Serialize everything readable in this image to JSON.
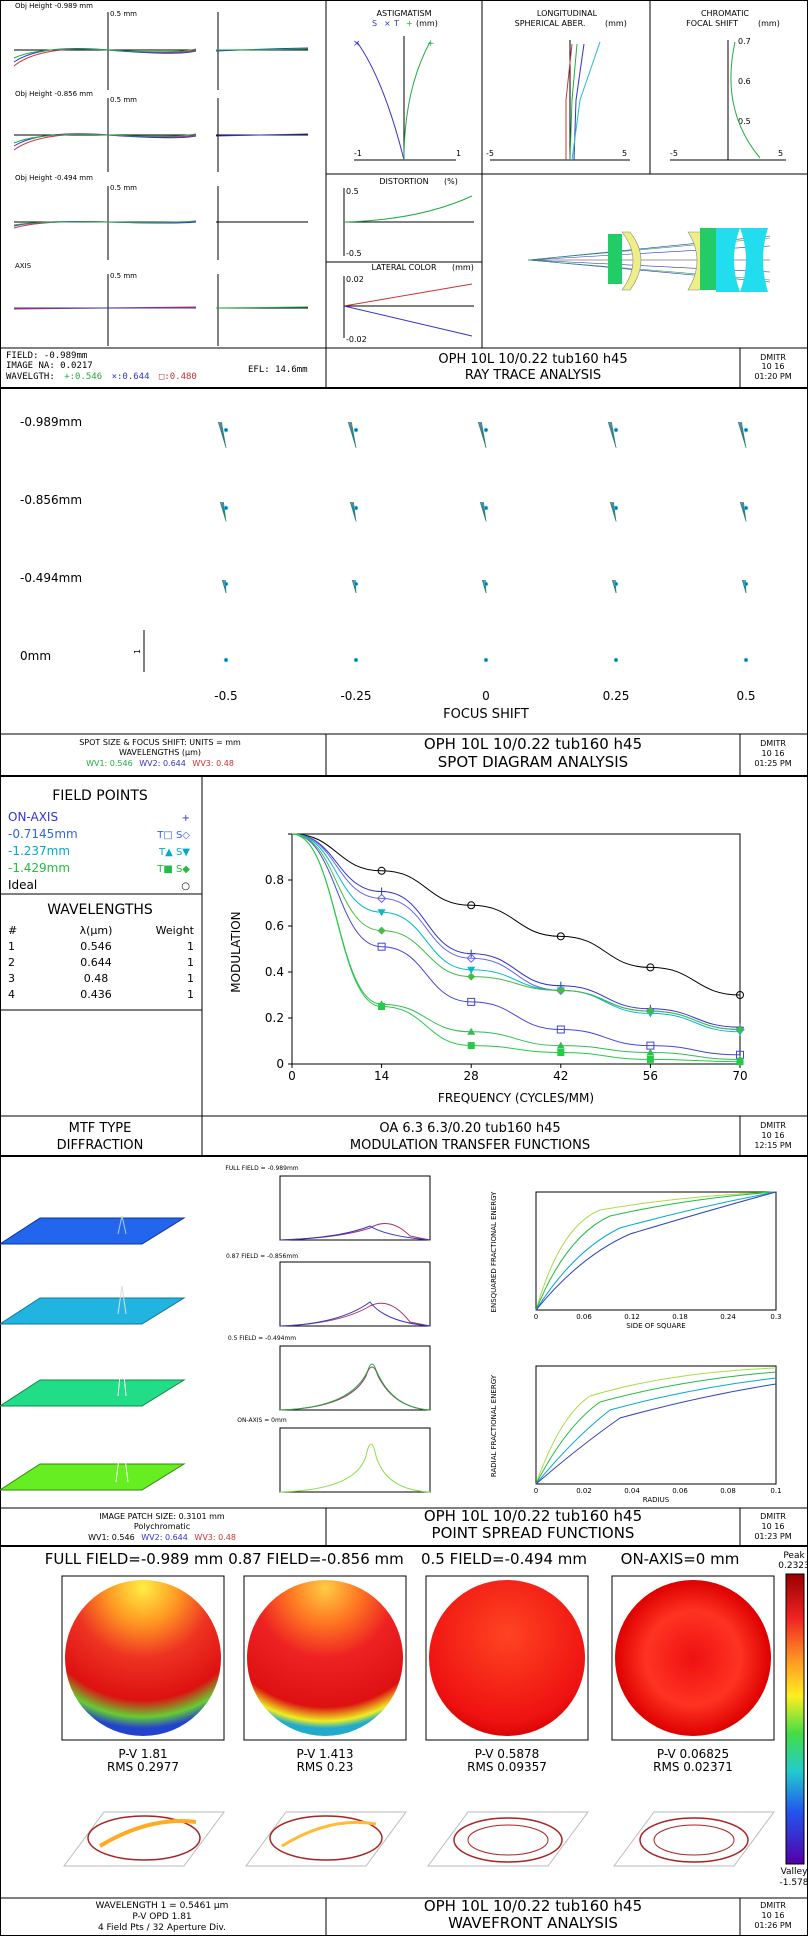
{
  "ray_trace": {
    "fans": [
      {
        "label": "Obj Height -0.989 mm",
        "scale": "0.5 mm"
      },
      {
        "label": "Obj Height -0.856 mm",
        "scale": "0.5 mm"
      },
      {
        "label": "Obj Height -0.494 mm",
        "scale": "0.5 mm"
      },
      {
        "label": "AXIS",
        "scale": "0.5 mm"
      }
    ],
    "astig": {
      "title": "ASTIGMATISM",
      "legend_s": "S",
      "legend_t": "T",
      "unit": "(mm)",
      "tick_min": "-1",
      "tick_max": "1"
    },
    "lsa": {
      "title1": "LONGITUDINAL",
      "title2": "SPHERICAL ABER.",
      "unit": "(mm)",
      "tick_min": "-5",
      "tick_max": "5"
    },
    "chroma": {
      "title1": "CHROMATIC",
      "title2": "FOCAL SHIFT",
      "unit": "(mm)",
      "tick_min": "-5",
      "tick_max": "5",
      "y_ticks": [
        "0.7",
        "0.6",
        "0.5"
      ]
    },
    "distortion": {
      "title": "DISTORTION",
      "unit": "(%)",
      "top": "0.5",
      "bottom": "-0.5"
    },
    "lateral": {
      "title": "LATERAL COLOR",
      "unit": "(mm)",
      "top": "0.02",
      "bottom": "-0.02"
    },
    "info": {
      "field": "FIELD: -0.989mm",
      "na": "IMAGE NA: 0.0217",
      "wave_prefix": "WAVELGTH:",
      "wave1": "+:0.546",
      "wave2": "×:0.644",
      "wave3": "□:0.480",
      "efl": "EFL: 14.6mm"
    },
    "title1": "OPH 10L 10/0.22 tub160 h45",
    "title2": "RAY TRACE ANALYSIS",
    "stamp": {
      "name": "DMITR",
      "date": "10  16",
      "time": "01:20 PM"
    }
  },
  "spot": {
    "rows": [
      "-0.989mm",
      "-0.856mm",
      "-0.494mm",
      "0mm"
    ],
    "scale": "1",
    "shifts": [
      "-0.5",
      "-0.25",
      "0",
      "0.25",
      "0.5"
    ],
    "xlabel": "FOCUS SHIFT",
    "info1": "SPOT SIZE & FOCUS SHIFT: UNITS = mm",
    "info2": "WAVELENGTHS (µm)",
    "wv1": "WV1: 0.546",
    "wv2": "WV2: 0.644",
    "wv3": "WV3: 0.48",
    "title1": "OPH 10L 10/0.22 tub160 h45",
    "title2": "SPOT DIAGRAM ANALYSIS",
    "stamp": {
      "name": "DMITR",
      "date": "10  16",
      "time": "01:25 PM"
    }
  },
  "mtf": {
    "field_header": "FIELD POINTS",
    "fields": [
      {
        "name": "ON-AXIS",
        "sym": "+"
      },
      {
        "name": "-0.7145mm",
        "sym": "T□  S◇"
      },
      {
        "name": "-1.237mm",
        "sym": "T▲  S▼"
      },
      {
        "name": "-1.429mm",
        "sym": "T■  S◆"
      },
      {
        "name": "Ideal",
        "sym": "○"
      }
    ],
    "wl_header": "WAVELENGTHS",
    "wl_cols": [
      "#",
      "λ(µm)",
      "Weight"
    ],
    "wl_rows": [
      [
        "1",
        "0.546",
        "1"
      ],
      [
        "2",
        "0.644",
        "1"
      ],
      [
        "3",
        "0.48",
        "1"
      ],
      [
        "4",
        "0.436",
        "1"
      ]
    ],
    "type1": "MTF TYPE",
    "type2": "DIFFRACTION",
    "title1": "OA 6.3 6.3/0.20 tub160 h45",
    "title2": "MODULATION TRANSFER FUNCTIONS",
    "stamp": {
      "name": "DMITR",
      "date": "10  16",
      "time": "12:15 PM"
    }
  },
  "chart_data": {
    "type": "line",
    "xlabel": "FREQUENCY (CYCLES/MM)",
    "ylabel": "MODULATION",
    "x": [
      0,
      14,
      28,
      42,
      56,
      70
    ],
    "xlim": [
      0,
      70
    ],
    "ylim": [
      0,
      1
    ],
    "grid": false,
    "series": [
      {
        "name": "Ideal",
        "color": "#000000",
        "marker": "circle",
        "values": [
          1,
          0.84,
          0.69,
          0.555,
          0.42,
          0.3
        ]
      },
      {
        "name": "ON-AXIS",
        "color": "#3333cc",
        "marker": "plus",
        "values": [
          1,
          0.75,
          0.48,
          0.34,
          0.24,
          0.16
        ]
      },
      {
        "name": "-0.7145mm S",
        "color": "#6666ee",
        "marker": "diamond",
        "values": [
          1,
          0.72,
          0.46,
          0.32,
          0.23,
          0.15
        ]
      },
      {
        "name": "-0.7145mm T",
        "color": "#4444dd",
        "marker": "square",
        "values": [
          1,
          0.51,
          0.27,
          0.15,
          0.08,
          0.04
        ]
      },
      {
        "name": "-1.237mm S",
        "color": "#00bbcc",
        "marker": "tri-down",
        "values": [
          1,
          0.66,
          0.41,
          0.32,
          0.22,
          0.14
        ]
      },
      {
        "name": "-1.237mm T",
        "color": "#33bb55",
        "marker": "tri-up",
        "values": [
          1,
          0.26,
          0.14,
          0.08,
          0.05,
          0.02
        ]
      },
      {
        "name": "-1.429mm S",
        "color": "#44bb44",
        "marker": "diamond-fill",
        "values": [
          1,
          0.58,
          0.38,
          0.32,
          0.23,
          0.15
        ]
      },
      {
        "name": "-1.429mm T",
        "color": "#22cc44",
        "marker": "square-fill",
        "values": [
          1,
          0.25,
          0.08,
          0.05,
          0.02,
          0.01
        ]
      }
    ]
  },
  "psf": {
    "fields": [
      "FULL FIELD = -0.989mm",
      "0.87 FIELD = -0.856mm",
      "0.5 FIELD = -0.494mm",
      "ON-AXIS = 0mm"
    ],
    "enc_ylabel": "ENSQUARED FRACTIONAL ENERGY",
    "enc_xlabel": "SIDE OF SQUARE",
    "enc_xticks": [
      "0",
      "0.06",
      "0.12",
      "0.18",
      "0.24",
      "0.3"
    ],
    "rad_ylabel": "RADIAL FRACTIONAL ENERGY",
    "rad_xlabel": "RADIUS",
    "rad_xticks": [
      "0",
      "0.02",
      "0.04",
      "0.06",
      "0.08",
      "0.1"
    ],
    "info1": "IMAGE PATCH SIZE: 0.3101 mm",
    "info2": "Polychromatic",
    "wv1": "WV1: 0.546",
    "wv2": "WV2: 0.644",
    "wv3": "WV3: 0.48",
    "title1": "OPH 10L 10/0.22 tub160 h45",
    "title2": "POINT SPREAD FUNCTIONS",
    "stamp": {
      "name": "DMITR",
      "date": "10  16",
      "time": "01:23 PM"
    }
  },
  "wavefront": {
    "maps": [
      {
        "label": "FULL FIELD=-0.989 mm",
        "pv": "P-V 1.81",
        "rms": "RMS 0.2977"
      },
      {
        "label": "0.87 FIELD=-0.856 mm",
        "pv": "P-V 1.413",
        "rms": "RMS 0.23"
      },
      {
        "label": "0.5 FIELD=-0.494 mm",
        "pv": "P-V 0.5878",
        "rms": "RMS 0.09357"
      },
      {
        "label": "ON-AXIS=0 mm",
        "pv": "P-V 0.06825",
        "rms": "RMS 0.02371"
      }
    ],
    "peak_label": "Peak",
    "peak_value": "0.2323",
    "valley_label": "Valley",
    "valley_value": "-1.578",
    "info1": "WAVELENGTH 1 = 0.5461 µm",
    "info2": "P-V OPD 1.81",
    "info3": "4 Field Pts / 32 Aperture Div.",
    "title1": "OPH 10L 10/0.22 tub160 h45",
    "title2": "WAVEFRONT ANALYSIS",
    "stamp": {
      "name": "DMITR",
      "date": "10  16",
      "time": "01:26 PM"
    }
  }
}
